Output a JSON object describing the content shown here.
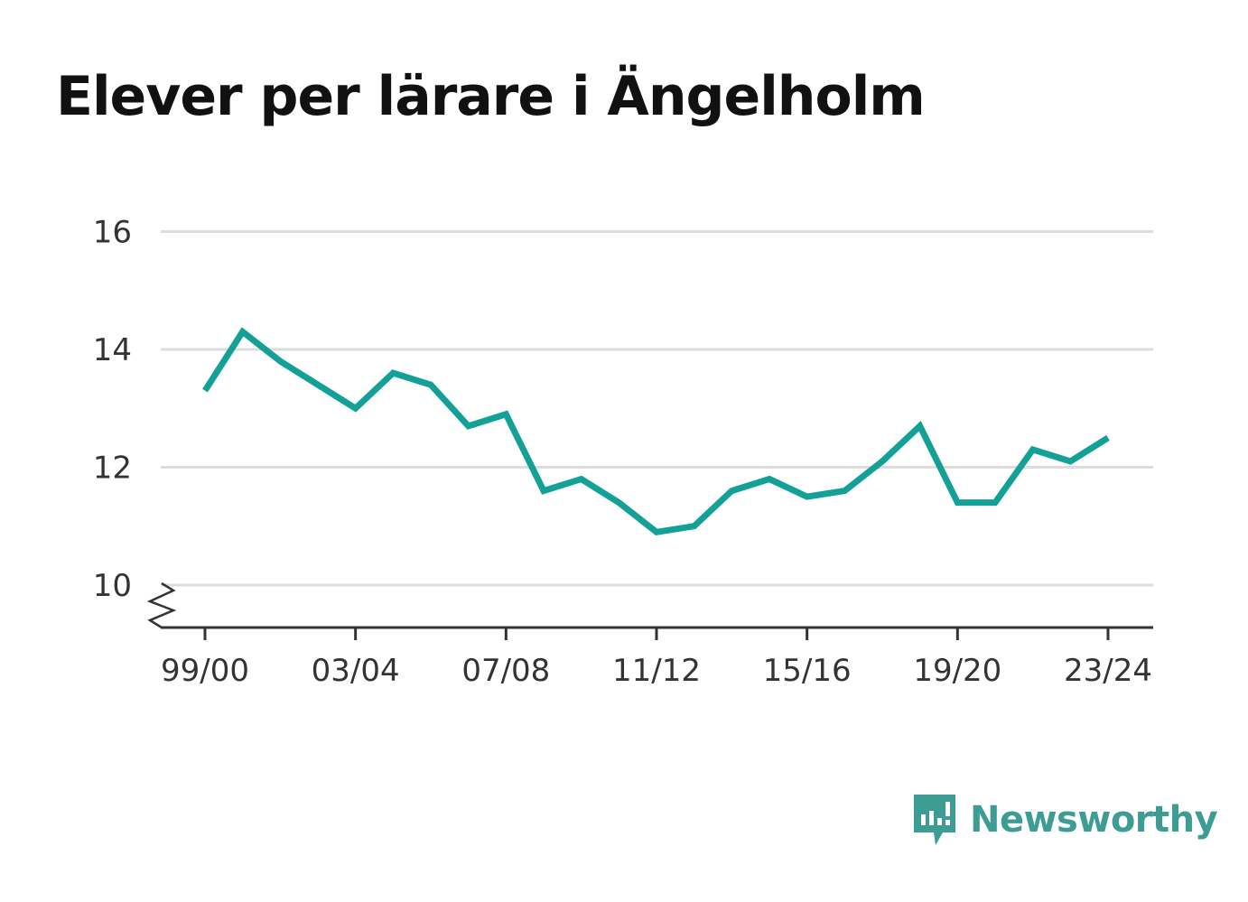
{
  "title": "Elever per lärare i Ängelholm",
  "brand": {
    "name": "Newsworthy",
    "color": "#3d9c93"
  },
  "colors": {
    "line": "#13a197",
    "grid": "#dddddd",
    "axis": "#333333",
    "text": "#333333"
  },
  "chart_data": {
    "type": "line",
    "title": "Elever per lärare i Ängelholm",
    "xlabel": "",
    "ylabel": "",
    "ylim": [
      9.3,
      16
    ],
    "axis_break": true,
    "grid": true,
    "yticks": [
      10,
      12,
      14,
      16
    ],
    "ytick_labels": [
      "10",
      "12",
      "14",
      "16"
    ],
    "x": [
      "99/00",
      "00/01",
      "01/02",
      "02/03",
      "03/04",
      "04/05",
      "05/06",
      "06/07",
      "07/08",
      "08/09",
      "09/10",
      "10/11",
      "11/12",
      "12/13",
      "13/14",
      "14/15",
      "15/16",
      "16/17",
      "17/18",
      "18/19",
      "19/20",
      "20/21",
      "21/22",
      "22/23",
      "23/24"
    ],
    "xtick_labels": [
      "99/00",
      "03/04",
      "07/08",
      "11/12",
      "15/16",
      "19/20",
      "23/24"
    ],
    "series": [
      {
        "values": [
          13.3,
          14.3,
          13.8,
          13.4,
          13.0,
          13.6,
          13.4,
          12.7,
          12.9,
          11.6,
          11.8,
          11.4,
          10.9,
          11.0,
          11.6,
          11.8,
          11.5,
          11.6,
          12.1,
          12.7,
          11.4,
          11.4,
          12.3,
          12.1,
          12.5
        ]
      }
    ]
  }
}
